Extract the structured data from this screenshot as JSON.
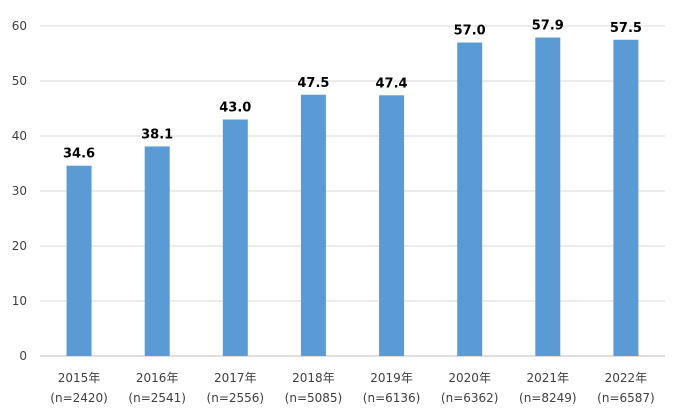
{
  "chart_data": {
    "type": "bar",
    "categories": [
      "2015年",
      "2016年",
      "2017年",
      "2018年",
      "2019年",
      "2020年",
      "2021年",
      "2022年"
    ],
    "sample_sizes": [
      "(n=2420)",
      "(n=2541)",
      "(n=2556)",
      "(n=5085)",
      "(n=6136)",
      "(n=6362)",
      "(n=8249)",
      "(n=6587)"
    ],
    "values": [
      34.6,
      38.1,
      43.0,
      47.5,
      47.4,
      57.0,
      57.9,
      57.5
    ],
    "value_labels": [
      "34.6",
      "38.1",
      "43.0",
      "47.5",
      "47.4",
      "57.0",
      "57.9",
      "57.5"
    ],
    "ylim": [
      0,
      60
    ],
    "yticks": [
      "0",
      "10",
      "20",
      "30",
      "40",
      "50",
      "60"
    ],
    "ytick_values": [
      0,
      10,
      20,
      30,
      40,
      50,
      60
    ],
    "grid": true,
    "legend": "none",
    "colors": {
      "bar": "#5B9BD5",
      "grid": "#D9D9D9",
      "axis": "#BFBFBF"
    }
  }
}
